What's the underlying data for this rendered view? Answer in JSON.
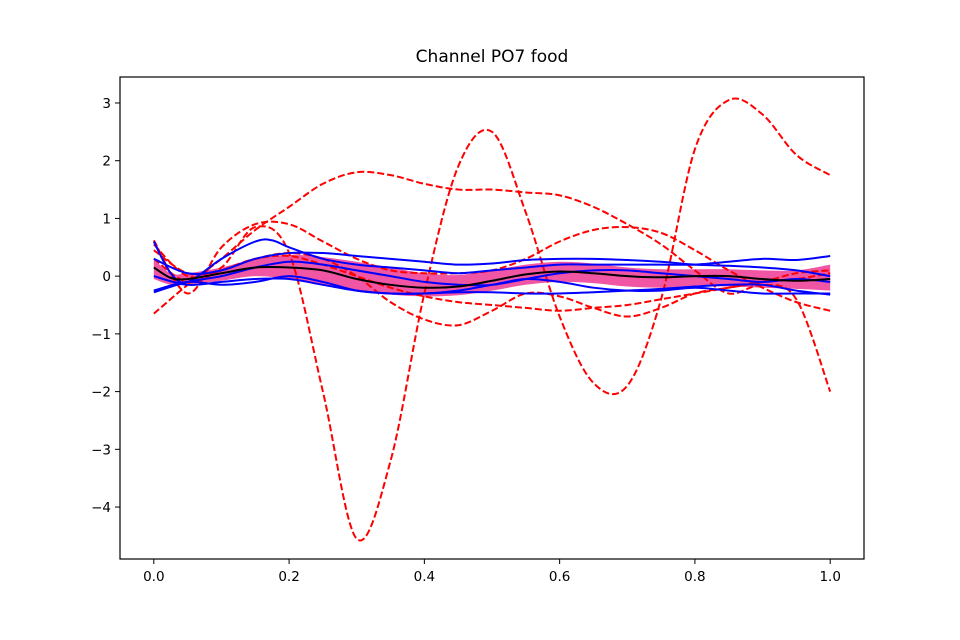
{
  "chart_data": {
    "type": "line",
    "title": "Channel PO7 food",
    "xlabel": "",
    "ylabel": "",
    "xlim": [
      -0.05,
      1.05
    ],
    "ylim": [
      -4.9,
      3.45
    ],
    "xticks": [
      0.0,
      0.2,
      0.4,
      0.6,
      0.8,
      1.0
    ],
    "xtick_labels": [
      "0.0",
      "0.2",
      "0.4",
      "0.6",
      "0.8",
      "1.0"
    ],
    "yticks": [
      3,
      2,
      1,
      0,
      -1,
      -2,
      -3,
      -4
    ],
    "ytick_labels": [
      "3",
      "2",
      "1",
      "0",
      "−1",
      "−2",
      "−3",
      "−4"
    ],
    "grid": false,
    "colors": {
      "outlier": "#ff0000",
      "inlier": "#0000ff",
      "mean": "#000000",
      "band": "#ee4499"
    },
    "band": {
      "x": [
        0,
        0.025,
        0.05,
        0.1,
        0.15,
        0.2,
        0.25,
        0.3,
        0.35,
        0.4,
        0.45,
        0.5,
        0.55,
        0.6,
        0.65,
        0.7,
        0.75,
        0.8,
        0.85,
        0.9,
        0.95,
        1.0
      ],
      "upper": [
        0.3,
        0.05,
        0.05,
        0.15,
        0.3,
        0.37,
        0.33,
        0.25,
        0.15,
        0.05,
        0.02,
        0.1,
        0.2,
        0.25,
        0.22,
        0.15,
        0.12,
        0.12,
        0.12,
        0.1,
        0.1,
        0.2
      ],
      "lower": [
        -0.05,
        -0.15,
        -0.15,
        -0.08,
        0.0,
        -0.05,
        -0.15,
        -0.25,
        -0.32,
        -0.35,
        -0.33,
        -0.25,
        -0.15,
        -0.1,
        -0.12,
        -0.18,
        -0.2,
        -0.18,
        -0.18,
        -0.2,
        -0.22,
        -0.25
      ]
    },
    "series": [
      {
        "style": "outlier",
        "x": [
          0,
          0.05,
          0.1,
          0.15,
          0.2,
          0.25,
          0.3,
          0.35,
          0.4,
          0.45,
          0.5,
          0.55,
          0.6,
          0.65,
          0.7,
          0.75,
          0.8,
          0.85,
          0.9,
          0.95,
          1.0
        ],
        "y": [
          0.55,
          0.0,
          0.15,
          0.85,
          0.4,
          -2.0,
          -4.55,
          -3.2,
          -0.3,
          1.9,
          2.5,
          1.1,
          -0.7,
          -1.85,
          -1.9,
          -0.4,
          2.2,
          3.05,
          2.8,
          2.1,
          1.75
        ]
      },
      {
        "style": "outlier",
        "x": [
          0,
          0.05,
          0.1,
          0.15,
          0.2,
          0.25,
          0.3,
          0.35,
          0.4,
          0.45,
          0.5,
          0.55,
          0.6,
          0.65,
          0.7,
          0.75,
          0.8,
          0.85,
          0.9,
          0.95,
          1.0
        ],
        "y": [
          -0.65,
          -0.15,
          0.3,
          0.8,
          1.2,
          1.6,
          1.8,
          1.75,
          1.6,
          1.5,
          1.5,
          1.45,
          1.4,
          1.2,
          0.9,
          0.55,
          0.1,
          -0.3,
          -0.15,
          -0.4,
          -2.0
        ]
      },
      {
        "style": "outlier",
        "x": [
          0,
          0.05,
          0.1,
          0.15,
          0.2,
          0.25,
          0.3,
          0.35,
          0.4,
          0.45,
          0.5,
          0.55,
          0.6,
          0.65,
          0.7,
          0.75,
          0.8,
          0.85,
          0.9,
          0.95,
          1.0
        ],
        "y": [
          0.62,
          -0.3,
          0.5,
          0.9,
          0.9,
          0.6,
          0.3,
          0.1,
          0.05,
          0.05,
          0.1,
          0.3,
          0.6,
          0.8,
          0.85,
          0.75,
          0.45,
          0.1,
          -0.2,
          -0.45,
          -0.6
        ]
      },
      {
        "style": "outlier",
        "x": [
          0,
          0.05,
          0.1,
          0.15,
          0.2,
          0.25,
          0.3,
          0.35,
          0.4,
          0.45,
          0.5,
          0.55,
          0.6,
          0.65,
          0.7,
          0.75,
          0.8,
          0.85,
          0.9,
          0.95,
          1.0
        ],
        "y": [
          0.45,
          0.05,
          0.1,
          0.3,
          0.4,
          0.3,
          0.0,
          -0.45,
          -0.75,
          -0.85,
          -0.6,
          -0.3,
          -0.35,
          -0.55,
          -0.7,
          -0.55,
          -0.3,
          -0.2,
          -0.1,
          -0.05,
          0.05
        ]
      },
      {
        "style": "outlier",
        "x": [
          0,
          0.05,
          0.1,
          0.15,
          0.2,
          0.25,
          0.3,
          0.35,
          0.4,
          0.45,
          0.5,
          0.55,
          0.6,
          0.65,
          0.7,
          0.75,
          0.8,
          0.85,
          0.9,
          0.95,
          1.0
        ],
        "y": [
          0.3,
          -0.1,
          0.1,
          0.3,
          0.35,
          0.2,
          0.0,
          -0.2,
          -0.35,
          -0.45,
          -0.5,
          -0.55,
          -0.6,
          -0.55,
          -0.5,
          -0.4,
          -0.3,
          -0.2,
          -0.1,
          0.05,
          0.1
        ]
      },
      {
        "style": "inlier",
        "x": [
          0,
          0.025,
          0.05,
          0.1,
          0.15,
          0.175,
          0.2,
          0.25,
          0.3,
          0.35,
          0.4,
          0.45,
          0.5,
          0.55,
          0.6,
          0.65,
          0.7,
          0.75,
          0.8,
          0.85,
          0.9,
          0.95,
          1.0
        ],
        "y": [
          0.6,
          0.05,
          -0.1,
          0.3,
          0.6,
          0.62,
          0.5,
          0.3,
          0.2,
          0.15,
          0.1,
          0.05,
          0.1,
          0.15,
          0.2,
          0.2,
          0.2,
          0.2,
          0.2,
          0.25,
          0.3,
          0.28,
          0.35
        ]
      },
      {
        "style": "inlier",
        "x": [
          0,
          0.05,
          0.1,
          0.15,
          0.2,
          0.25,
          0.3,
          0.35,
          0.4,
          0.45,
          0.5,
          0.55,
          0.6,
          0.65,
          0.7,
          0.75,
          0.8,
          0.85,
          0.9,
          0.95,
          1.0
        ],
        "y": [
          0.3,
          0.05,
          0.1,
          0.3,
          0.4,
          0.4,
          0.35,
          0.3,
          0.25,
          0.2,
          0.22,
          0.28,
          0.3,
          0.3,
          0.28,
          0.25,
          0.2,
          0.18,
          0.15,
          0.1,
          0.0
        ]
      },
      {
        "style": "inlier",
        "x": [
          0,
          0.05,
          0.1,
          0.15,
          0.2,
          0.25,
          0.3,
          0.35,
          0.4,
          0.45,
          0.5,
          0.55,
          0.6,
          0.65,
          0.7,
          0.75,
          0.8,
          0.85,
          0.9,
          0.95,
          1.0
        ],
        "y": [
          -0.25,
          -0.1,
          -0.15,
          -0.1,
          0.0,
          -0.1,
          -0.25,
          -0.3,
          -0.3,
          -0.25,
          -0.15,
          -0.05,
          -0.1,
          -0.2,
          -0.25,
          -0.25,
          -0.2,
          -0.25,
          -0.3,
          -0.3,
          -0.3
        ]
      },
      {
        "style": "inlier",
        "x": [
          0,
          0.05,
          0.1,
          0.15,
          0.2,
          0.25,
          0.3,
          0.35,
          0.4,
          0.45,
          0.5,
          0.55,
          0.6,
          0.65,
          0.7,
          0.75,
          0.8,
          0.85,
          0.9,
          0.95,
          1.0
        ],
        "y": [
          0.0,
          -0.15,
          -0.1,
          -0.05,
          -0.05,
          -0.15,
          -0.25,
          -0.3,
          -0.3,
          -0.28,
          -0.28,
          -0.3,
          -0.3,
          -0.28,
          -0.25,
          -0.22,
          -0.18,
          -0.15,
          -0.15,
          -0.25,
          -0.32
        ]
      },
      {
        "style": "inlier",
        "x": [
          0,
          0.05,
          0.1,
          0.15,
          0.2,
          0.25,
          0.3,
          0.35,
          0.4,
          0.45,
          0.5,
          0.55,
          0.6,
          0.65,
          0.7,
          0.75,
          0.8,
          0.85,
          0.9,
          0.95,
          1.0
        ],
        "y": [
          -0.28,
          -0.1,
          0.0,
          0.15,
          0.25,
          0.2,
          0.1,
          0.0,
          -0.1,
          -0.15,
          -0.15,
          -0.05,
          0.05,
          0.1,
          0.1,
          0.05,
          0.0,
          -0.05,
          -0.1,
          -0.05,
          -0.1
        ]
      },
      {
        "style": "mean",
        "x": [
          0,
          0.025,
          0.05,
          0.1,
          0.15,
          0.2,
          0.25,
          0.3,
          0.35,
          0.4,
          0.45,
          0.5,
          0.55,
          0.6,
          0.65,
          0.7,
          0.75,
          0.8,
          0.85,
          0.9,
          0.95,
          1.0
        ],
        "y": [
          0.15,
          -0.03,
          -0.05,
          0.05,
          0.15,
          0.15,
          0.1,
          -0.05,
          -0.15,
          -0.2,
          -0.18,
          -0.08,
          0.03,
          0.08,
          0.05,
          0.0,
          -0.02,
          0.0,
          0.0,
          -0.05,
          -0.08,
          -0.05
        ]
      }
    ]
  }
}
